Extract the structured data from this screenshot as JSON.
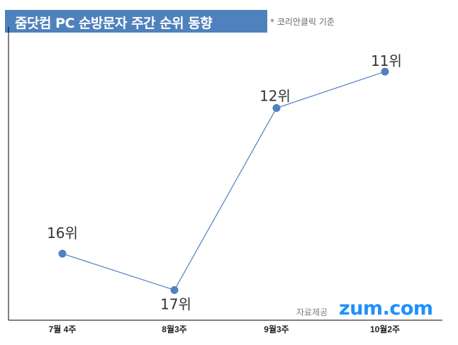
{
  "header": {
    "title": "줌닷컴 PC 순방문자 주간 순위 동향",
    "note": "* 코리안클릭 기준"
  },
  "footer": {
    "source_label": "자료제공",
    "logo_text": "zum.com"
  },
  "colors": {
    "title_bg": "#4f81bd",
    "line": "#4f81bd",
    "marker": "#4f81bd",
    "logo": "#1e90ff"
  },
  "chart_data": {
    "type": "line",
    "title": "줌닷컴 PC 순방문자 주간 순위 동향",
    "categories": [
      "7월 4주",
      "8월3주",
      "9월3주",
      "10월2주"
    ],
    "values": [
      16,
      17,
      12,
      11
    ],
    "data_labels": [
      "16위",
      "17위",
      "12위",
      "11위"
    ],
    "ylim": [
      17.4,
      10.2
    ],
    "y_reversed": true,
    "grid": false,
    "legend": "none"
  }
}
